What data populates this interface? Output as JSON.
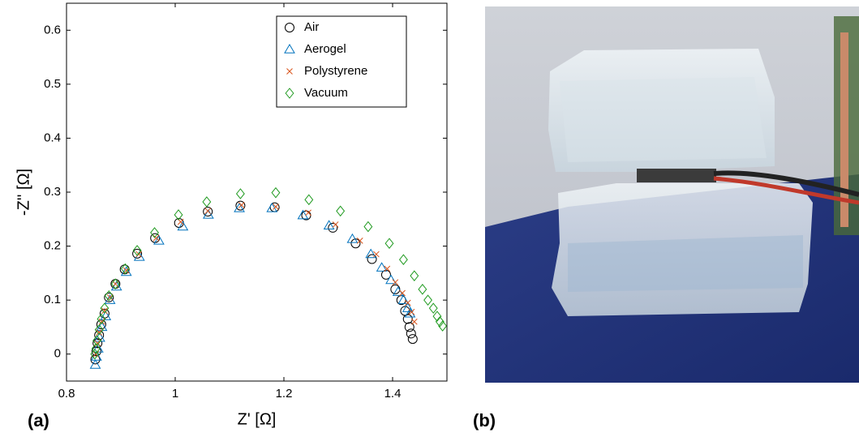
{
  "chart_data": {
    "type": "scatter",
    "x_label": "Z' [Ω]",
    "y_label": "-Z'' [Ω]",
    "panel_labels": [
      "(a)",
      "(b)"
    ],
    "xlim": [
      0.8,
      1.5
    ],
    "ylim": [
      -0.05,
      0.65
    ],
    "xticks": [
      0.8,
      1,
      1.2,
      1.4
    ],
    "yticks": [
      0,
      0.1,
      0.2,
      0.3,
      0.4,
      0.5,
      0.6
    ],
    "legend": "upper right",
    "series": [
      {
        "name": "Air",
        "color": "#000000",
        "marker": "circle",
        "x": [
          0.853,
          0.855,
          0.857,
          0.86,
          0.864,
          0.87,
          0.878,
          0.89,
          0.907,
          0.93,
          0.963,
          1.007,
          1.06,
          1.12,
          1.183,
          1.241,
          1.29,
          1.332,
          1.362,
          1.388,
          1.405,
          1.416,
          1.423,
          1.428,
          1.431,
          1.434,
          1.437
        ],
        "values": [
          -0.01,
          0.005,
          0.02,
          0.035,
          0.055,
          0.075,
          0.105,
          0.13,
          0.157,
          0.186,
          0.215,
          0.243,
          0.264,
          0.275,
          0.272,
          0.257,
          0.234,
          0.205,
          0.176,
          0.147,
          0.12,
          0.1,
          0.08,
          0.065,
          0.05,
          0.038,
          0.028
        ]
      },
      {
        "name": "Aerogel",
        "color": "#0072bd",
        "marker": "triangle",
        "x": [
          0.853,
          0.855,
          0.858,
          0.861,
          0.865,
          0.872,
          0.88,
          0.892,
          0.91,
          0.934,
          0.97,
          1.014,
          1.061,
          1.118,
          1.178,
          1.235,
          1.283,
          1.326,
          1.36,
          1.38,
          1.397,
          1.41,
          1.42,
          1.428,
          1.432
        ],
        "values": [
          -0.02,
          -0.005,
          0.01,
          0.03,
          0.05,
          0.07,
          0.1,
          0.125,
          0.152,
          0.18,
          0.21,
          0.236,
          0.258,
          0.27,
          0.27,
          0.257,
          0.238,
          0.213,
          0.185,
          0.16,
          0.137,
          0.115,
          0.1,
          0.085,
          0.075
        ]
      },
      {
        "name": "Polystyrene",
        "color": "#d95319",
        "marker": "x",
        "x": [
          0.854,
          0.857,
          0.86,
          0.865,
          0.87,
          0.88,
          0.89,
          0.91,
          0.933,
          0.965,
          1.01,
          1.06,
          1.122,
          1.185,
          1.245,
          1.295,
          1.34,
          1.37,
          1.39,
          1.405,
          1.418,
          1.428,
          1.435,
          1.44
        ],
        "values": [
          0,
          0.02,
          0.04,
          0.06,
          0.08,
          0.105,
          0.13,
          0.155,
          0.185,
          0.215,
          0.245,
          0.265,
          0.276,
          0.273,
          0.262,
          0.24,
          0.21,
          0.185,
          0.158,
          0.133,
          0.113,
          0.095,
          0.078,
          0.06
        ]
      },
      {
        "name": "Vacuum",
        "color": "#1f9a1f",
        "marker": "diamond",
        "x": [
          0.852,
          0.854,
          0.856,
          0.86,
          0.864,
          0.87,
          0.878,
          0.89,
          0.908,
          0.93,
          0.962,
          1.006,
          1.058,
          1.12,
          1.185,
          1.246,
          1.304,
          1.355,
          1.394,
          1.42,
          1.44,
          1.455,
          1.465,
          1.475,
          1.482,
          1.487,
          1.492
        ],
        "values": [
          0,
          0.01,
          0.025,
          0.045,
          0.065,
          0.085,
          0.108,
          0.13,
          0.158,
          0.192,
          0.225,
          0.258,
          0.282,
          0.297,
          0.299,
          0.286,
          0.265,
          0.236,
          0.205,
          0.175,
          0.145,
          0.12,
          0.1,
          0.085,
          0.07,
          0.06,
          0.052
        ]
      }
    ]
  }
}
